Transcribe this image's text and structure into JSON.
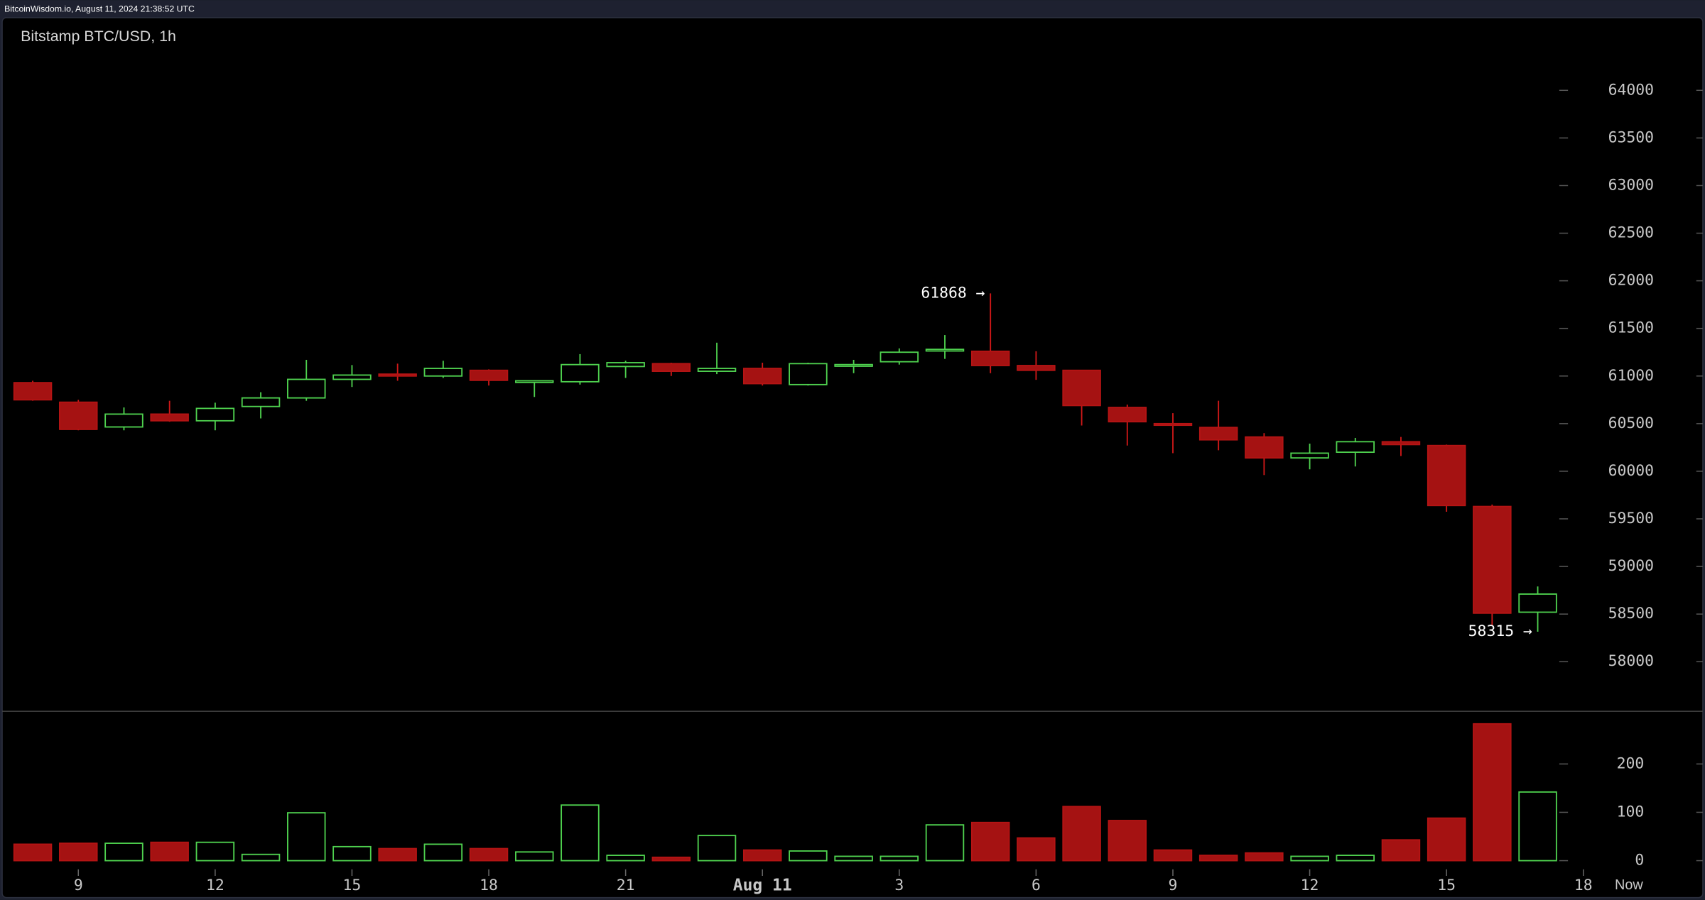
{
  "header": "BitcoinWisdom.io, August 11, 2024 21:38:52 UTC",
  "chart_data": {
    "type": "candlestick",
    "title": "Bitstamp BTC/USD, 1h",
    "x": [
      8,
      9,
      10,
      11,
      12,
      13,
      14,
      15,
      16,
      17,
      18,
      19,
      20,
      21,
      22,
      23,
      24,
      25,
      26,
      27,
      28,
      29,
      30,
      31,
      32,
      33,
      34,
      35,
      36,
      37,
      38,
      39,
      40,
      41
    ],
    "open": [
      60930,
      60725,
      60465,
      60600,
      60530,
      60680,
      60770,
      60965,
      61020,
      61000,
      61060,
      60940,
      60940,
      61100,
      61130,
      61050,
      61080,
      60910,
      61110,
      61150,
      61270,
      61260,
      61110,
      61060,
      60670,
      60500,
      60460,
      60360,
      60140,
      60200,
      60310,
      60270,
      59630,
      58520
    ],
    "high": [
      60950,
      60750,
      60670,
      60740,
      60720,
      60830,
      61170,
      61115,
      61130,
      61160,
      61070,
      60955,
      61230,
      61160,
      61140,
      61350,
      61140,
      61140,
      61170,
      61290,
      61430,
      61868,
      61260,
      61060,
      60700,
      60610,
      60740,
      60400,
      60290,
      60350,
      60360,
      60280,
      59650,
      58790
    ],
    "low": [
      60740,
      60430,
      60430,
      60520,
      60430,
      60555,
      60740,
      60885,
      60950,
      60980,
      60900,
      60780,
      60910,
      60980,
      61000,
      61020,
      60900,
      60900,
      61030,
      61120,
      61180,
      61030,
      60960,
      60480,
      60270,
      60190,
      60220,
      59960,
      60020,
      60050,
      60160,
      59575,
      58385,
      58315
    ],
    "close": [
      60750,
      60440,
      60600,
      60530,
      60660,
      60770,
      60965,
      61010,
      61000,
      61080,
      60955,
      60950,
      61120,
      61140,
      61050,
      61080,
      60920,
      61130,
      61120,
      61250,
      61280,
      61110,
      61060,
      60690,
      60520,
      60490,
      60330,
      60140,
      60190,
      60310,
      60280,
      59640,
      58510,
      58710
    ],
    "volume": [
      34,
      36,
      36,
      38,
      38,
      13,
      99,
      29,
      25,
      34,
      25,
      18,
      115,
      11,
      7,
      52,
      22,
      20,
      9,
      9,
      74,
      79,
      47,
      112,
      83,
      22,
      11,
      16,
      9,
      11,
      43,
      88,
      283,
      142
    ],
    "up_color": "#4fd24f",
    "down_color": "#a51212",
    "xlim": [
      7.33,
      44
    ],
    "xticks": [
      {
        "value": 9,
        "label": "9"
      },
      {
        "value": 12,
        "label": "12"
      },
      {
        "value": 15,
        "label": "15"
      },
      {
        "value": 18,
        "label": "18"
      },
      {
        "value": 21,
        "label": "21"
      },
      {
        "value": 24,
        "label": "Aug 11"
      },
      {
        "value": 27,
        "label": "3"
      },
      {
        "value": 30,
        "label": "6"
      },
      {
        "value": 33,
        "label": "9"
      },
      {
        "value": 36,
        "label": "12"
      },
      {
        "value": 39,
        "label": "15"
      },
      {
        "value": 42,
        "label": "18"
      }
    ],
    "now_label": "Now",
    "ylim": [
      57485,
      64490
    ],
    "yticks": [
      58000,
      58500,
      59000,
      59500,
      60000,
      60500,
      61000,
      61500,
      62000,
      62500,
      63000,
      63500,
      64000
    ],
    "volume_ylim": [
      0,
      300
    ],
    "volume_yticks": [
      0,
      100,
      200
    ],
    "annotations": [
      {
        "x": 29,
        "y": 61868,
        "label": "61868 →"
      },
      {
        "x": 41,
        "y": 58315,
        "label": "58315 →"
      }
    ]
  }
}
